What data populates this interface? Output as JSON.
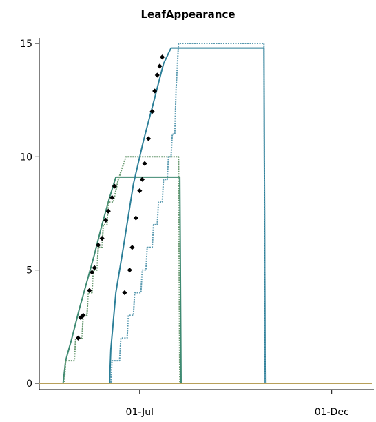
{
  "chart_data": {
    "type": "line",
    "title": "LeafAppearance",
    "xlabel": "",
    "ylabel": "",
    "xlim": [
      "1990-04-12",
      "1991-01-02"
    ],
    "ylim": [
      0,
      15
    ],
    "x_ticks": [
      {
        "date": "1990-07-01",
        "label": "01-Jul"
      },
      {
        "date": "1990-12-01",
        "label": "01-Dec"
      }
    ],
    "y_ticks": [
      {
        "value": 0,
        "label": "0"
      },
      {
        "value": 5,
        "label": "5"
      },
      {
        "value": 10,
        "label": "10"
      },
      {
        "value": 15,
        "label": "15"
      }
    ],
    "grid": false,
    "legend": "none",
    "series": [
      {
        "style": "solid",
        "color": "#3e8a72",
        "points": [
          [
            "1990-04-12",
            0
          ],
          [
            "1990-05-01",
            0
          ],
          [
            "1990-05-03",
            1
          ],
          [
            "1990-05-08",
            2
          ],
          [
            "1990-05-14",
            3.3
          ],
          [
            "1990-05-20",
            4.5
          ],
          [
            "1990-05-26",
            5.7
          ],
          [
            "1990-06-01",
            7
          ],
          [
            "1990-06-07",
            8.2
          ],
          [
            "1990-06-12",
            9.1
          ],
          [
            "1990-08-02",
            9.1
          ],
          [
            "1990-08-03",
            0
          ],
          [
            "1991-01-02",
            0
          ]
        ]
      },
      {
        "style": "dotted",
        "color": "#6a9a72",
        "points": [
          [
            "1990-04-12",
            0
          ],
          [
            "1990-05-02",
            0
          ],
          [
            "1990-05-03",
            1
          ],
          [
            "1990-05-10",
            1
          ],
          [
            "1990-05-11",
            2
          ],
          [
            "1990-05-16",
            2
          ],
          [
            "1990-05-17",
            3
          ],
          [
            "1990-05-20",
            3
          ],
          [
            "1990-05-21",
            4
          ],
          [
            "1990-05-24",
            4
          ],
          [
            "1990-05-25",
            5
          ],
          [
            "1990-05-28",
            5
          ],
          [
            "1990-05-29",
            6
          ],
          [
            "1990-06-01",
            6
          ],
          [
            "1990-06-02",
            7
          ],
          [
            "1990-06-05",
            7
          ],
          [
            "1990-06-06",
            8
          ],
          [
            "1990-06-10",
            8
          ],
          [
            "1990-06-14",
            9
          ],
          [
            "1990-06-20",
            10
          ],
          [
            "1990-08-01",
            10
          ],
          [
            "1990-08-02",
            0
          ],
          [
            "1991-01-02",
            0
          ]
        ]
      },
      {
        "style": "solid",
        "color": "#2c7f98",
        "points": [
          [
            "1990-04-12",
            0
          ],
          [
            "1990-06-07",
            0
          ],
          [
            "1990-06-08",
            1.5
          ],
          [
            "1990-06-12",
            4
          ],
          [
            "1990-06-18",
            6
          ],
          [
            "1990-06-26",
            8.8
          ],
          [
            "1990-07-04",
            10.7
          ],
          [
            "1990-07-12",
            12.4
          ],
          [
            "1990-07-20",
            14.1
          ],
          [
            "1990-07-26",
            14.8
          ],
          [
            "1990-10-08",
            14.8
          ],
          [
            "1990-10-09",
            0
          ],
          [
            "1991-01-02",
            0
          ]
        ]
      },
      {
        "style": "dotted",
        "color": "#5a9ab0",
        "points": [
          [
            "1990-04-12",
            0
          ],
          [
            "1990-06-08",
            0
          ],
          [
            "1990-06-09",
            1
          ],
          [
            "1990-06-15",
            1
          ],
          [
            "1990-06-16",
            2
          ],
          [
            "1990-06-21",
            2
          ],
          [
            "1990-06-22",
            3
          ],
          [
            "1990-06-26",
            3
          ],
          [
            "1990-06-27",
            4
          ],
          [
            "1990-07-02",
            4
          ],
          [
            "1990-07-03",
            5
          ],
          [
            "1990-07-06",
            5
          ],
          [
            "1990-07-07",
            6
          ],
          [
            "1990-07-11",
            6
          ],
          [
            "1990-07-12",
            7
          ],
          [
            "1990-07-15",
            7
          ],
          [
            "1990-07-16",
            8
          ],
          [
            "1990-07-19",
            8
          ],
          [
            "1990-07-20",
            9
          ],
          [
            "1990-07-23",
            9
          ],
          [
            "1990-07-24",
            10
          ],
          [
            "1990-07-26",
            10
          ],
          [
            "1990-07-27",
            11
          ],
          [
            "1990-07-29",
            11
          ],
          [
            "1990-07-30",
            13
          ],
          [
            "1990-08-01",
            15
          ],
          [
            "1990-10-08",
            15
          ],
          [
            "1990-10-09",
            0
          ],
          [
            "1991-01-02",
            0
          ]
        ]
      },
      {
        "style": "solid",
        "color": "#b8a05a",
        "points": [
          [
            "1990-04-12",
            0
          ],
          [
            "1991-01-02",
            0
          ]
        ]
      }
    ],
    "observed": {
      "marker": "dot",
      "color": "#000000",
      "points": [
        [
          "1990-05-13",
          2
        ],
        [
          "1990-05-15",
          2.9
        ],
        [
          "1990-05-17",
          3
        ],
        [
          "1990-05-22",
          4.1
        ],
        [
          "1990-05-24",
          4.9
        ],
        [
          "1990-05-26",
          5.1
        ],
        [
          "1990-05-29",
          6.1
        ],
        [
          "1990-06-01",
          6.4
        ],
        [
          "1990-06-04",
          7.2
        ],
        [
          "1990-06-06",
          7.6
        ],
        [
          "1990-06-09",
          8.2
        ],
        [
          "1990-06-11",
          8.7
        ],
        [
          "1990-06-19",
          4
        ],
        [
          "1990-06-23",
          5
        ],
        [
          "1990-06-25",
          6
        ],
        [
          "1990-06-28",
          7.3
        ],
        [
          "1990-07-01",
          8.5
        ],
        [
          "1990-07-03",
          9
        ],
        [
          "1990-07-05",
          9.7
        ],
        [
          "1990-07-08",
          10.8
        ],
        [
          "1990-07-11",
          12
        ],
        [
          "1990-07-13",
          12.9
        ],
        [
          "1990-07-15",
          13.6
        ],
        [
          "1990-07-17",
          14
        ],
        [
          "1990-07-19",
          14.4
        ]
      ]
    }
  }
}
